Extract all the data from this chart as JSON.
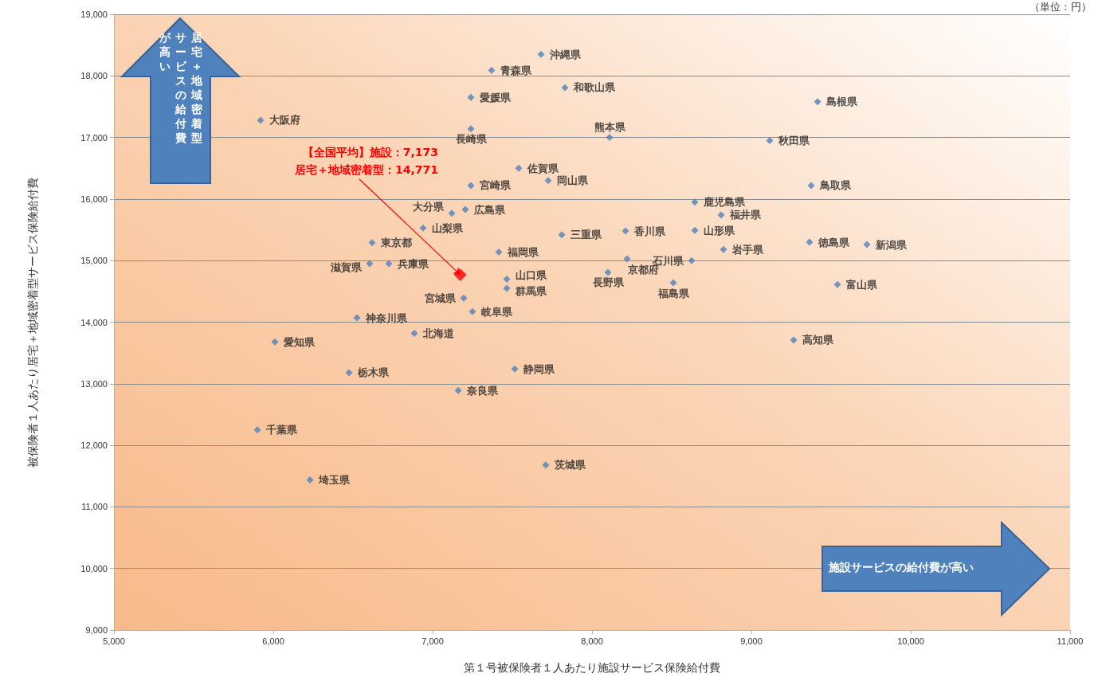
{
  "chart_data": {
    "type": "scatter",
    "xlabel": "第１号被保険者１人あたり施設サービス保険給付費",
    "ylabel": "被保険者１人あたり居宅＋地域密着型サービス保険給付費",
    "annotations": [
      "（単位：円）",
      "居宅＋地域密着型サービスの給付費が高い",
      "施設サービスの給付費が高い",
      {
        "text": "【全国平均】施設：7,173\n居宅＋地域密着型：14,771",
        "x": 7173,
        "y": 14771
      }
    ],
    "xlim": [
      5000,
      11000
    ],
    "xticks": [
      {
        "value": 5000,
        "label": "5,000"
      },
      {
        "value": 6000,
        "label": "6,000"
      },
      {
        "value": 7000,
        "label": "7,000"
      },
      {
        "value": 8000,
        "label": "8,000"
      },
      {
        "value": 9000,
        "label": "9,000"
      },
      {
        "value": 10000,
        "label": "10,000"
      },
      {
        "value": 11000,
        "label": "11,000"
      }
    ],
    "ylim": [
      9000,
      19000
    ],
    "yticks": [
      {
        "value": 9000,
        "label": "9,000"
      },
      {
        "value": 10000,
        "label": "10,000"
      },
      {
        "value": 11000,
        "label": "11,000"
      },
      {
        "value": 12000,
        "label": "12,000"
      },
      {
        "value": 13000,
        "label": "13,000"
      },
      {
        "value": 14000,
        "label": "14,000"
      },
      {
        "value": 15000,
        "label": "15,000"
      },
      {
        "value": 16000,
        "label": "16,000"
      },
      {
        "value": 17000,
        "label": "17,000"
      },
      {
        "value": 18000,
        "label": "18,000"
      },
      {
        "value": 19000,
        "label": "19,000"
      }
    ],
    "grid": "y",
    "legend": false,
    "marker": "diamond",
    "series": [
      {
        "name": "北海道",
        "color": "#4f81bd",
        "x": [
          6885
        ],
        "values": [
          13820
        ]
      },
      {
        "name": "青森県",
        "color": "#4f81bd",
        "x": [
          7370
        ],
        "values": [
          18090
        ]
      },
      {
        "name": "岩手県",
        "color": "#4f81bd",
        "x": [
          8825
        ],
        "values": [
          15180
        ]
      },
      {
        "name": "宮城県",
        "color": "#4f81bd",
        "x": [
          7195
        ],
        "values": [
          14390
        ]
      },
      {
        "name": "秋田県",
        "color": "#4f81bd",
        "x": [
          9115
        ],
        "values": [
          16950
        ]
      },
      {
        "name": "山形県",
        "color": "#4f81bd",
        "x": [
          8645
        ],
        "values": [
          15490
        ]
      },
      {
        "name": "福島県",
        "color": "#4f81bd",
        "x": [
          8510
        ],
        "values": [
          14640
        ]
      },
      {
        "name": "茨城県",
        "color": "#4f81bd",
        "x": [
          7710
        ],
        "values": [
          11680
        ]
      },
      {
        "name": "栃木県",
        "color": "#4f81bd",
        "x": [
          6475
        ],
        "values": [
          13180
        ]
      },
      {
        "name": "群馬県",
        "color": "#4f81bd",
        "x": [
          7465
        ],
        "values": [
          14550
        ]
      },
      {
        "name": "埼玉県",
        "color": "#4f81bd",
        "x": [
          6230
        ],
        "values": [
          11440
        ]
      },
      {
        "name": "千葉県",
        "color": "#4f81bd",
        "x": [
          5900
        ],
        "values": [
          12250
        ]
      },
      {
        "name": "東京都",
        "color": "#4f81bd",
        "x": [
          6620
        ],
        "values": [
          15290
        ]
      },
      {
        "name": "神奈川県",
        "color": "#4f81bd",
        "x": [
          6525
        ],
        "values": [
          14070
        ]
      },
      {
        "name": "新潟県",
        "color": "#4f81bd",
        "x": [
          9725
        ],
        "values": [
          15260
        ]
      },
      {
        "name": "富山県",
        "color": "#4f81bd",
        "x": [
          9540
        ],
        "values": [
          14610
        ]
      },
      {
        "name": "石川県",
        "color": "#4f81bd",
        "x": [
          8625
        ],
        "values": [
          15000
        ]
      },
      {
        "name": "福井県",
        "color": "#4f81bd",
        "x": [
          8810
        ],
        "values": [
          15740
        ]
      },
      {
        "name": "山梨県",
        "color": "#4f81bd",
        "x": [
          6940
        ],
        "values": [
          15530
        ]
      },
      {
        "name": "長野県",
        "color": "#4f81bd",
        "x": [
          8100
        ],
        "values": [
          14810
        ]
      },
      {
        "name": "岐阜県",
        "color": "#4f81bd",
        "x": [
          7250
        ],
        "values": [
          14170
        ]
      },
      {
        "name": "静岡県",
        "color": "#4f81bd",
        "x": [
          7515
        ],
        "values": [
          13240
        ]
      },
      {
        "name": "愛知県",
        "color": "#4f81bd",
        "x": [
          6010
        ],
        "values": [
          13680
        ]
      },
      {
        "name": "三重県",
        "color": "#4f81bd",
        "x": [
          7810
        ],
        "values": [
          15420
        ]
      },
      {
        "name": "滋賀県",
        "color": "#4f81bd",
        "x": [
          6605
        ],
        "values": [
          14950
        ]
      },
      {
        "name": "京都府",
        "color": "#4f81bd",
        "x": [
          8220
        ],
        "values": [
          15030
        ]
      },
      {
        "name": "大阪府",
        "color": "#4f81bd",
        "x": [
          5920
        ],
        "values": [
          17280
        ]
      },
      {
        "name": "兵庫県",
        "color": "#4f81bd",
        "x": [
          6725
        ],
        "values": [
          14950
        ]
      },
      {
        "name": "奈良県",
        "color": "#4f81bd",
        "x": [
          7160
        ],
        "values": [
          12890
        ]
      },
      {
        "name": "和歌山県",
        "color": "#4f81bd",
        "x": [
          7830
        ],
        "values": [
          17810
        ]
      },
      {
        "name": "鳥取県",
        "color": "#4f81bd",
        "x": [
          9375
        ],
        "values": [
          16220
        ]
      },
      {
        "name": "島根県",
        "color": "#4f81bd",
        "x": [
          9415
        ],
        "values": [
          17580
        ]
      },
      {
        "name": "岡山県",
        "color": "#4f81bd",
        "x": [
          7725
        ],
        "values": [
          16300
        ]
      },
      {
        "name": "広島県",
        "color": "#4f81bd",
        "x": [
          7205
        ],
        "values": [
          15830
        ]
      },
      {
        "name": "山口県",
        "color": "#4f81bd",
        "x": [
          7465
        ],
        "values": [
          14700
        ]
      },
      {
        "name": "徳島県",
        "color": "#4f81bd",
        "x": [
          9365
        ],
        "values": [
          15300
        ]
      },
      {
        "name": "香川県",
        "color": "#4f81bd",
        "x": [
          8210
        ],
        "values": [
          15480
        ]
      },
      {
        "name": "愛媛県",
        "color": "#4f81bd",
        "x": [
          7240
        ],
        "values": [
          17650
        ]
      },
      {
        "name": "高知県",
        "color": "#4f81bd",
        "x": [
          9265
        ],
        "values": [
          13710
        ]
      },
      {
        "name": "福岡県",
        "color": "#4f81bd",
        "x": [
          7415
        ],
        "values": [
          15140
        ]
      },
      {
        "name": "佐賀県",
        "color": "#4f81bd",
        "x": [
          7540
        ],
        "values": [
          16500
        ]
      },
      {
        "name": "長崎県",
        "color": "#4f81bd",
        "x": [
          7240
        ],
        "values": [
          17140
        ]
      },
      {
        "name": "熊本県",
        "color": "#4f81bd",
        "x": [
          8110
        ],
        "values": [
          17000
        ]
      },
      {
        "name": "大分県",
        "color": "#4f81bd",
        "x": [
          7120
        ],
        "values": [
          15770
        ]
      },
      {
        "name": "宮崎県",
        "color": "#4f81bd",
        "x": [
          7240
        ],
        "values": [
          16220
        ]
      },
      {
        "name": "鹿児島県",
        "color": "#4f81bd",
        "x": [
          8645
        ],
        "values": [
          15950
        ]
      },
      {
        "name": "沖縄県",
        "color": "#4f81bd",
        "x": [
          7680
        ],
        "values": [
          18350
        ]
      },
      {
        "color": "#ff0000",
        "x": [
          7173
        ],
        "values": [
          14771
        ]
      }
    ]
  }
}
